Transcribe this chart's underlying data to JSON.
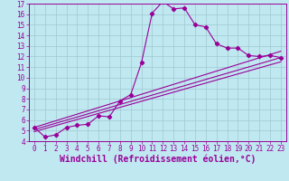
{
  "xlabel": "Windchill (Refroidissement éolien,°C)",
  "xlim": [
    -0.5,
    23.5
  ],
  "ylim": [
    4,
    17
  ],
  "xticks": [
    0,
    1,
    2,
    3,
    4,
    5,
    6,
    7,
    8,
    9,
    10,
    11,
    12,
    13,
    14,
    15,
    16,
    17,
    18,
    19,
    20,
    21,
    22,
    23
  ],
  "yticks": [
    4,
    5,
    6,
    7,
    8,
    9,
    10,
    11,
    12,
    13,
    14,
    15,
    16,
    17
  ],
  "bg_color": "#c0e8f0",
  "line_color": "#990099",
  "grid_color": "#a0c8d0",
  "curve_x": [
    0,
    1,
    2,
    3,
    4,
    5,
    6,
    7,
    8,
    9,
    10,
    11,
    12,
    13,
    14,
    15,
    16,
    17,
    18,
    19,
    20,
    21,
    22,
    23
  ],
  "curve_y": [
    5.3,
    4.4,
    4.6,
    5.3,
    5.5,
    5.6,
    6.4,
    6.3,
    7.8,
    8.4,
    11.4,
    16.1,
    17.2,
    16.5,
    16.6,
    15.0,
    14.8,
    13.2,
    12.8,
    12.8,
    12.1,
    12.0,
    12.1,
    11.9
  ],
  "line2_x": [
    0,
    23
  ],
  "line2_y": [
    5.3,
    12.5
  ],
  "line3_x": [
    0,
    23
  ],
  "line3_y": [
    5.1,
    11.9
  ],
  "line4_x": [
    0,
    23
  ],
  "line4_y": [
    4.9,
    11.5
  ],
  "tick_fontsize": 5.5,
  "xlabel_fontsize": 7.0
}
